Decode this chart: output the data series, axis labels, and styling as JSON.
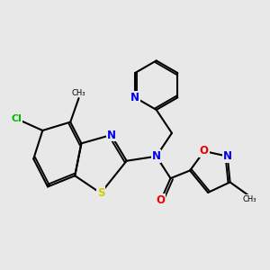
{
  "background_color": "#e8e8e8",
  "bond_color": "#000000",
  "atom_colors": {
    "N": "#0000ee",
    "S": "#cccc00",
    "O": "#ee0000",
    "Cl": "#00bb00",
    "C": "#000000"
  },
  "figsize": [
    3.0,
    3.0
  ],
  "dpi": 100,
  "bond_lw": 1.5,
  "font_size": 8.5
}
